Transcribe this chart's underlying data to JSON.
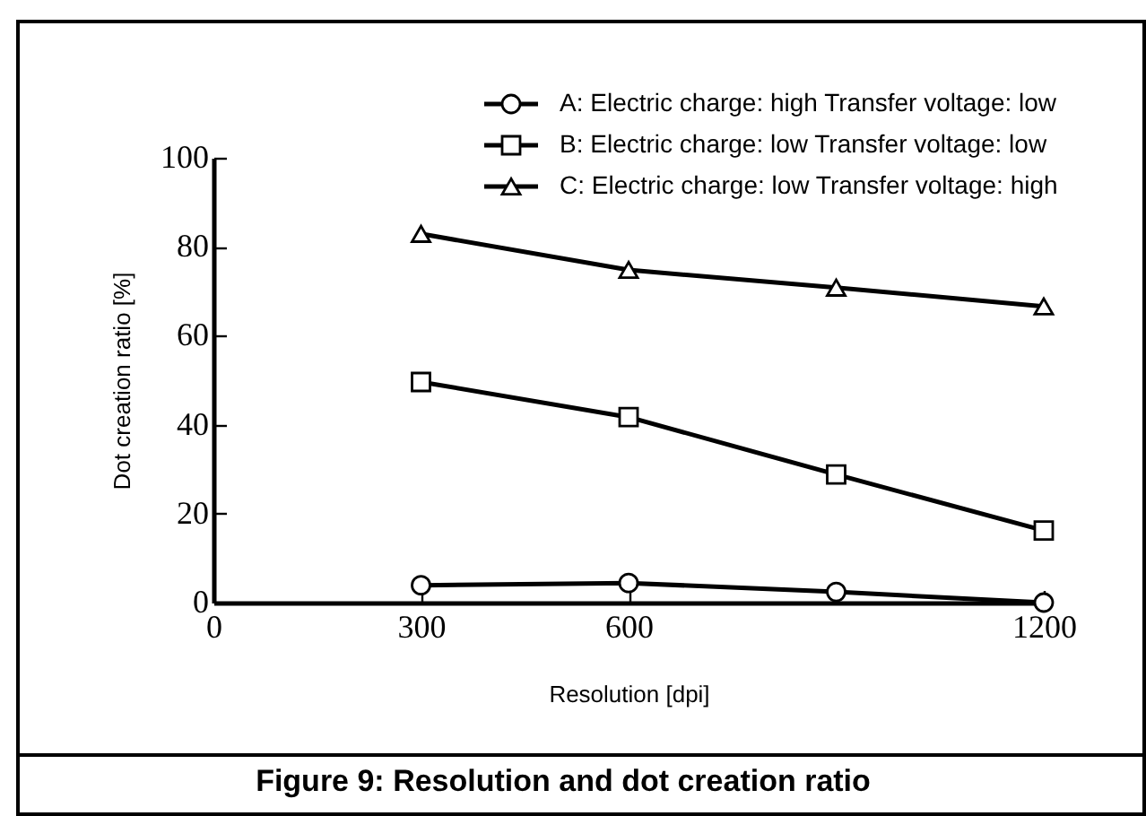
{
  "chart_data": {
    "type": "line",
    "title": "Figure 9: Resolution and dot creation ratio",
    "xlabel": "Resolution [dpi]",
    "ylabel": "Dot creation ratio [%]",
    "x": [
      300,
      600,
      900,
      1200
    ],
    "series": [
      {
        "name": "A: Electric charge: high Transfer voltage: low",
        "color": "#000000",
        "marker": "circle",
        "values": [
          3.9,
          4.4,
          2.4,
          0
        ]
      },
      {
        "name": "B: Electric charge: low Transfer voltage: low",
        "color": "#000000",
        "marker": "square",
        "values": [
          49.6,
          41.7,
          28.8,
          16.2
        ]
      },
      {
        "name": "C: Electric charge: low Transfer voltage: high",
        "color": "#000000",
        "marker": "triangle",
        "values": [
          82.9,
          74.8,
          70.8,
          66.6
        ]
      }
    ],
    "xlim": [
      0,
      1200
    ],
    "xticks": [
      0,
      300,
      600,
      1200
    ],
    "ylim": [
      0,
      100
    ],
    "yticks": [
      0,
      20,
      40,
      60,
      80,
      100
    ],
    "grid": false,
    "legend": "top right",
    "line_style": "solid"
  }
}
